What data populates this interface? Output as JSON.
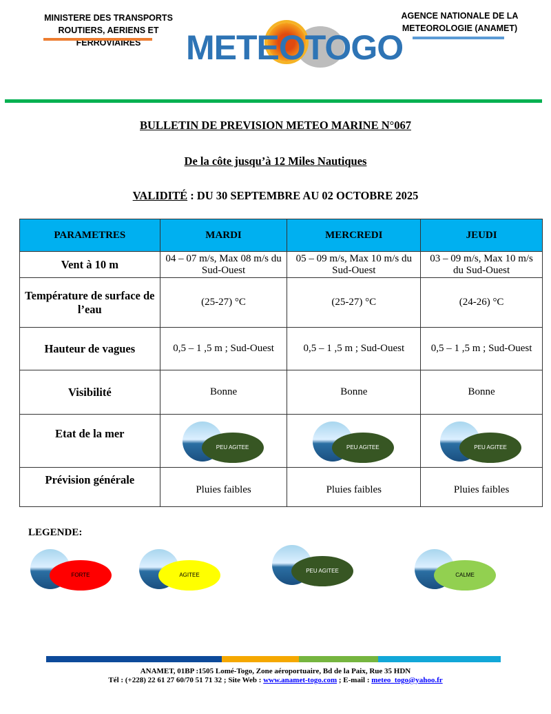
{
  "header": {
    "ministry_line1": "MINISTERE DES TRANSPORTS",
    "ministry_line2": "ROUTIERS, AERIENS ET FERROVIAIRES",
    "agency_line1": "AGENCE NATIONALE DE LA",
    "agency_line2": "METEOROLOGIE (ANAMET)",
    "logo_text": "METEOTOGO"
  },
  "bulletin": {
    "title": "BULLETIN DE PREVISION METEO MARINE N°067",
    "subtitle": "De la côte jusqu’à 12 Miles Nautiques",
    "validity_label": "VALIDITÉ",
    "validity_text": " : DU 30 SEPTEMBRE AU 02 OCTOBRE 2025"
  },
  "table": {
    "headers": [
      "PARAMETRES",
      "MARDI",
      "MERCREDI",
      "JEUDI"
    ],
    "rows": [
      {
        "param": "Vent à 10 m",
        "values": [
          "04 – 07 m/s, Max 08 m/s du Sud-Ouest",
          "05 – 09 m/s, Max 10 m/s du Sud-Ouest",
          "03 – 09 m/s, Max 10 m/s du Sud-Ouest"
        ]
      },
      {
        "param": "Température de surface de l’eau",
        "values": [
          "(25-27) °C",
          "(25-27) °C",
          "(24-26) °C"
        ]
      },
      {
        "param": "Hauteur de vagues",
        "values": [
          "0,5 – 1 ,5 m ; Sud-Ouest",
          "0,5 – 1 ,5 m ; Sud-Ouest",
          "0,5 – 1 ,5 m ; Sud-Ouest"
        ]
      },
      {
        "param": "Visibilité",
        "values": [
          "Bonne",
          "Bonne",
          "Bonne"
        ]
      },
      {
        "param": "Etat de la mer",
        "values": [
          "PEU AGITEE",
          "PEU AGITEE",
          "PEU AGITEE"
        ]
      },
      {
        "param": "Prévision générale",
        "values": [
          "Pluies faibles",
          "Pluies faibles",
          "Pluies faibles"
        ]
      }
    ]
  },
  "legend": {
    "title": "LEGENDE:",
    "items": [
      {
        "label": "FORTE",
        "color": "#ff0000"
      },
      {
        "label": "AGITEE",
        "color": "#ffff00"
      },
      {
        "label": "PEU AGITEE",
        "color": "#375623"
      },
      {
        "label": "CALME",
        "color": "#92d050"
      }
    ]
  },
  "footer": {
    "line1": "ANAMET, 01BP :1505 Lomé-Togo, Zone aéroportuaire, Bd de la Paix, Rue 35 HDN",
    "line2_prefix": "Tél : (+228) 22 61 27 60/70 51 71 32 ; Site Web : ",
    "website": "www.anamet-togo.com",
    "email_prefix": " ; E-mail : ",
    "email": "meteo_togo@yahoo.fr"
  }
}
